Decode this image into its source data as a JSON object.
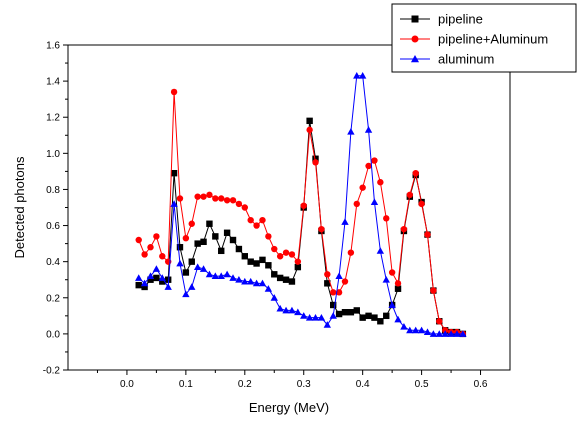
{
  "chart_data": {
    "type": "line",
    "xlabel": "Energy (MeV)",
    "ylabel": "Detected photons",
    "xlim": [
      -0.1,
      0.65
    ],
    "ylim": [
      -0.2,
      1.6
    ],
    "x_ticks": [
      0.0,
      0.1,
      0.2,
      0.3,
      0.4,
      0.5,
      0.6
    ],
    "x_tick_labels": [
      "0.0",
      "0.1",
      "0.2",
      "0.3",
      "0.4",
      "0.5",
      "0.6"
    ],
    "y_ticks": [
      -0.2,
      0.0,
      0.2,
      0.4,
      0.6,
      0.8,
      1.0,
      1.2,
      1.4,
      1.6
    ],
    "y_tick_labels": [
      "-0.2",
      "0.0",
      "0.2",
      "0.4",
      "0.6",
      "0.8",
      "1.0",
      "1.2",
      "1.4",
      "1.6"
    ],
    "grid": false,
    "legend_position": "top-right",
    "series": [
      {
        "name": "pipeline",
        "color": "#000000",
        "marker": "square",
        "x": [
          0.02,
          0.03,
          0.04,
          0.05,
          0.06,
          0.07,
          0.08,
          0.09,
          0.1,
          0.11,
          0.12,
          0.13,
          0.14,
          0.15,
          0.16,
          0.17,
          0.18,
          0.19,
          0.2,
          0.21,
          0.22,
          0.23,
          0.24,
          0.25,
          0.26,
          0.27,
          0.28,
          0.29,
          0.3,
          0.31,
          0.32,
          0.33,
          0.34,
          0.35,
          0.36,
          0.37,
          0.38,
          0.39,
          0.4,
          0.41,
          0.42,
          0.43,
          0.44,
          0.45,
          0.46,
          0.47,
          0.48,
          0.49,
          0.5,
          0.51,
          0.52,
          0.53,
          0.54,
          0.55,
          0.56,
          0.57
        ],
        "y": [
          0.27,
          0.26,
          0.3,
          0.31,
          0.29,
          0.3,
          0.89,
          0.48,
          0.34,
          0.4,
          0.5,
          0.51,
          0.61,
          0.54,
          0.46,
          0.56,
          0.52,
          0.47,
          0.43,
          0.4,
          0.39,
          0.41,
          0.38,
          0.33,
          0.31,
          0.3,
          0.29,
          0.37,
          0.7,
          1.18,
          0.97,
          0.57,
          0.28,
          0.16,
          0.11,
          0.12,
          0.12,
          0.13,
          0.09,
          0.1,
          0.09,
          0.07,
          0.1,
          0.16,
          0.25,
          0.57,
          0.76,
          0.88,
          0.73,
          0.55,
          0.24,
          0.07,
          0.02,
          0.01,
          0.01,
          0.0
        ]
      },
      {
        "name": "pipeline+Aluminum",
        "color": "#ff0000",
        "marker": "circle",
        "x": [
          0.02,
          0.03,
          0.04,
          0.05,
          0.06,
          0.07,
          0.08,
          0.09,
          0.1,
          0.11,
          0.12,
          0.13,
          0.14,
          0.15,
          0.16,
          0.17,
          0.18,
          0.19,
          0.2,
          0.21,
          0.22,
          0.23,
          0.24,
          0.25,
          0.26,
          0.27,
          0.28,
          0.29,
          0.3,
          0.31,
          0.32,
          0.33,
          0.34,
          0.35,
          0.36,
          0.37,
          0.38,
          0.39,
          0.4,
          0.41,
          0.42,
          0.43,
          0.44,
          0.45,
          0.46,
          0.47,
          0.48,
          0.49,
          0.5,
          0.51,
          0.52,
          0.53,
          0.54,
          0.55,
          0.56,
          0.57
        ],
        "y": [
          0.52,
          0.44,
          0.48,
          0.54,
          0.43,
          0.4,
          1.34,
          0.75,
          0.53,
          0.61,
          0.76,
          0.76,
          0.77,
          0.75,
          0.75,
          0.74,
          0.74,
          0.72,
          0.7,
          0.63,
          0.6,
          0.63,
          0.54,
          0.47,
          0.43,
          0.45,
          0.44,
          0.4,
          0.71,
          1.13,
          0.95,
          0.58,
          0.33,
          0.23,
          0.23,
          0.29,
          0.45,
          0.72,
          0.81,
          0.93,
          0.96,
          0.84,
          0.64,
          0.34,
          0.28,
          0.58,
          0.77,
          0.89,
          0.72,
          0.55,
          0.24,
          0.07,
          0.02,
          0.01,
          0.01,
          0.0
        ]
      },
      {
        "name": "aluminum",
        "color": "#0000ff",
        "marker": "triangle",
        "x": [
          0.02,
          0.03,
          0.04,
          0.05,
          0.06,
          0.07,
          0.08,
          0.09,
          0.1,
          0.11,
          0.12,
          0.13,
          0.14,
          0.15,
          0.16,
          0.17,
          0.18,
          0.19,
          0.2,
          0.21,
          0.22,
          0.23,
          0.24,
          0.25,
          0.26,
          0.27,
          0.28,
          0.29,
          0.3,
          0.31,
          0.32,
          0.33,
          0.34,
          0.35,
          0.36,
          0.37,
          0.38,
          0.39,
          0.4,
          0.41,
          0.42,
          0.43,
          0.44,
          0.45,
          0.46,
          0.47,
          0.48,
          0.49,
          0.5,
          0.51,
          0.52,
          0.53,
          0.54,
          0.55,
          0.56,
          0.57
        ],
        "y": [
          0.31,
          0.28,
          0.32,
          0.36,
          0.31,
          0.26,
          0.72,
          0.39,
          0.22,
          0.26,
          0.37,
          0.36,
          0.33,
          0.32,
          0.32,
          0.33,
          0.31,
          0.3,
          0.29,
          0.29,
          0.28,
          0.28,
          0.25,
          0.2,
          0.14,
          0.13,
          0.13,
          0.12,
          0.1,
          0.09,
          0.09,
          0.09,
          0.05,
          0.1,
          0.32,
          0.62,
          1.12,
          1.43,
          1.43,
          1.13,
          0.73,
          0.46,
          0.3,
          0.16,
          0.08,
          0.04,
          0.02,
          0.02,
          0.02,
          0.01,
          0.0,
          0.0,
          0.0,
          0.0,
          0.0,
          0.0
        ]
      }
    ]
  }
}
